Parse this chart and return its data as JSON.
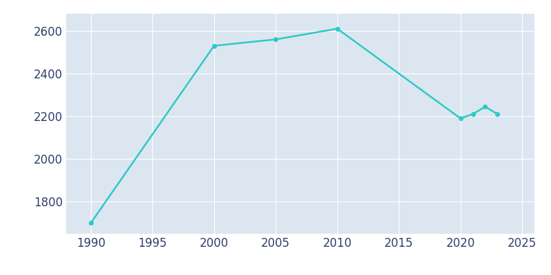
{
  "years": [
    1990,
    2000,
    2005,
    2010,
    2020,
    2021,
    2022,
    2023
  ],
  "population": [
    1700,
    2530,
    2560,
    2610,
    2190,
    2210,
    2245,
    2210
  ],
  "line_color": "#2ec8c8",
  "marker_color": "#2ec8c8",
  "plot_background_color": "#dce6f0",
  "figure_background_color": "#ffffff",
  "grid_color": "#ffffff",
  "xlim": [
    1988,
    2026
  ],
  "ylim": [
    1650,
    2680
  ],
  "xticks": [
    1990,
    1995,
    2000,
    2005,
    2010,
    2015,
    2020,
    2025
  ],
  "yticks": [
    1800,
    2000,
    2200,
    2400,
    2600
  ],
  "tick_label_color": "#2e3f6e",
  "tick_label_fontsize": 12
}
